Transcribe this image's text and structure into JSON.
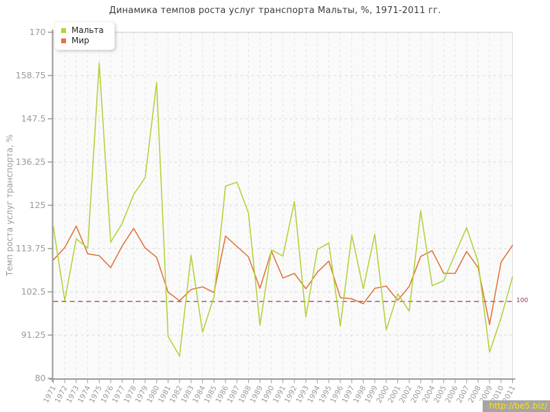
{
  "title": "Динамика темпов роста услуг транспорта Мальты, %, 1971-2011 гг.",
  "watermark": "http://be5.biz/",
  "reference_line": {
    "value": 100,
    "label": "100",
    "color": "#993344"
  },
  "chart_data": {
    "type": "line",
    "title": "Динамика темпов роста услуг транспорта Мальты, %, 1971-2011 гг.",
    "xlabel": "",
    "ylabel": "Темп роста услуг транспорта, %",
    "ylim": [
      80,
      170
    ],
    "yticks": [
      170,
      158.75,
      147.5,
      136.25,
      125,
      113.75,
      102.5,
      91.25,
      80
    ],
    "grid": true,
    "legend_position": "top-left",
    "x": [
      1971,
      1972,
      1973,
      1974,
      1975,
      1976,
      1977,
      1978,
      1979,
      1980,
      1981,
      1982,
      1983,
      1984,
      1985,
      1986,
      1987,
      1988,
      1989,
      1990,
      1991,
      1992,
      1993,
      1994,
      1995,
      1996,
      1997,
      1998,
      1999,
      2000,
      2001,
      2002,
      2003,
      2004,
      2005,
      2006,
      2007,
      2008,
      2009,
      2010,
      2011
    ],
    "series": [
      {
        "name": "Мальта",
        "color": "#b3d23a",
        "values": [
          119.5,
          100.2,
          116.3,
          113.9,
          162,
          115.4,
          120.3,
          127.8,
          132.2,
          156.9,
          90.9,
          85.8,
          112,
          92,
          101.2,
          130,
          131,
          123,
          93.8,
          113.4,
          111.8,
          126,
          96,
          113.5,
          115.2,
          93.6,
          117.3,
          103.3,
          117.5,
          92.6,
          102,
          97.5,
          123.6,
          104.1,
          105.4,
          112.3,
          119.2,
          110.3,
          86.8,
          95.7,
          106.4
        ]
      },
      {
        "name": "Мир",
        "color": "#e2743e",
        "values": [
          110.8,
          114,
          119.6,
          112.4,
          111.9,
          108.8,
          114.4,
          119,
          113.9,
          111.5,
          102.4,
          100.2,
          103.1,
          103.8,
          102.3,
          117,
          114.3,
          111.6,
          103.4,
          113.1,
          106.1,
          107.3,
          103.3,
          107.6,
          110.5,
          101,
          100.7,
          99.4,
          103.4,
          104,
          100.3,
          103.9,
          111.7,
          113.2,
          107.3,
          107.3,
          113,
          108.8,
          94,
          110.2,
          114.6
        ]
      }
    ]
  }
}
